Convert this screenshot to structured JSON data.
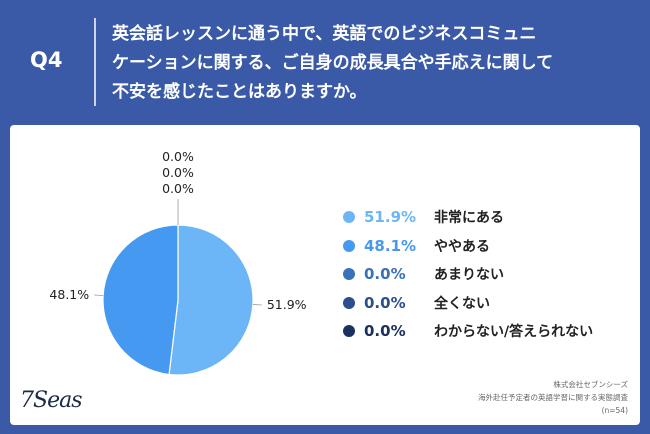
{
  "question": {
    "number": "Q4",
    "text": "英会話レッスンに通う中で、英語でのビジネスコミュニ\nケーションに関する、ご自身の成長具合や手応えに関して\n不安を感じたことはありますか。"
  },
  "chart_data": {
    "type": "pie",
    "categories": [
      "非常にある",
      "ややある",
      "あまりない",
      "全くない",
      "わからない/答えられない"
    ],
    "values": [
      51.9,
      48.1,
      0.0,
      0.0,
      0.0
    ],
    "value_labels": [
      "51.9%",
      "48.1%",
      "0.0%",
      "0.0%",
      "0.0%"
    ],
    "colors": [
      "#6cb6f7",
      "#4599f0",
      "#3a72b8",
      "#2b4f8c",
      "#1a3160"
    ],
    "start": "12 o'clock, clockwise",
    "legend_position": "right"
  },
  "footer": {
    "logo": "7Seas",
    "company": "株式会社セブンシーズ",
    "survey": "海外赴任予定者の英語学習に関する実態調査",
    "sample": "(n=54)"
  }
}
